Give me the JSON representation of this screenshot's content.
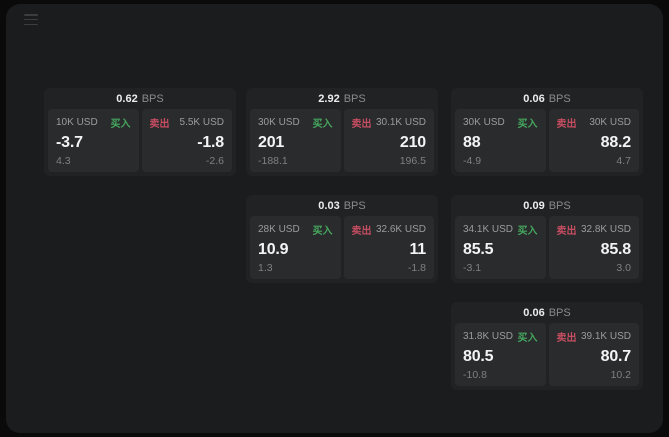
{
  "colors": {
    "background": "#0a0a0b",
    "panel": "#1b1c1d",
    "card": "#212223",
    "subpanel": "#2a2b2c",
    "buy_green": "#46a75f",
    "sell_red": "#c44d61"
  },
  "menu": {
    "icon": "hamburger-menu"
  },
  "cards": [
    {
      "bps_value": "0.62",
      "bps_unit": "BPS",
      "buy": {
        "amount": "10K USD",
        "side_label": "买入",
        "price": "-3.7",
        "delta": "4.3"
      },
      "sell": {
        "side_label": "卖出",
        "amount": "5.5K USD",
        "price": "-1.8",
        "delta": "-2.6"
      }
    },
    {
      "bps_value": "2.92",
      "bps_unit": "BPS",
      "buy": {
        "amount": "30K USD",
        "side_label": "买入",
        "price": "201",
        "delta": "-188.1"
      },
      "sell": {
        "side_label": "卖出",
        "amount": "30.1K USD",
        "price": "210",
        "delta": "196.5"
      }
    },
    {
      "bps_value": "0.06",
      "bps_unit": "BPS",
      "buy": {
        "amount": "30K USD",
        "side_label": "买入",
        "price": "88",
        "delta": "-4.9"
      },
      "sell": {
        "side_label": "卖出",
        "amount": "30K USD",
        "price": "88.2",
        "delta": "4.7"
      }
    },
    {
      "bps_value": "0.03",
      "bps_unit": "BPS",
      "buy": {
        "amount": "28K USD",
        "side_label": "买入",
        "price": "10.9",
        "delta": "1.3"
      },
      "sell": {
        "side_label": "卖出",
        "amount": "32.6K USD",
        "price": "11",
        "delta": "-1.8"
      }
    },
    {
      "bps_value": "0.09",
      "bps_unit": "BPS",
      "buy": {
        "amount": "34.1K USD",
        "side_label": "买入",
        "price": "85.5",
        "delta": "-3.1"
      },
      "sell": {
        "side_label": "卖出",
        "amount": "32.8K USD",
        "price": "85.8",
        "delta": "3.0"
      }
    },
    {
      "bps_value": "0.06",
      "bps_unit": "BPS",
      "buy": {
        "amount": "31.8K USD",
        "side_label": "买入",
        "price": "80.5",
        "delta": "-10.8"
      },
      "sell": {
        "side_label": "卖出",
        "amount": "39.1K USD",
        "price": "80.7",
        "delta": "10.2"
      }
    }
  ]
}
